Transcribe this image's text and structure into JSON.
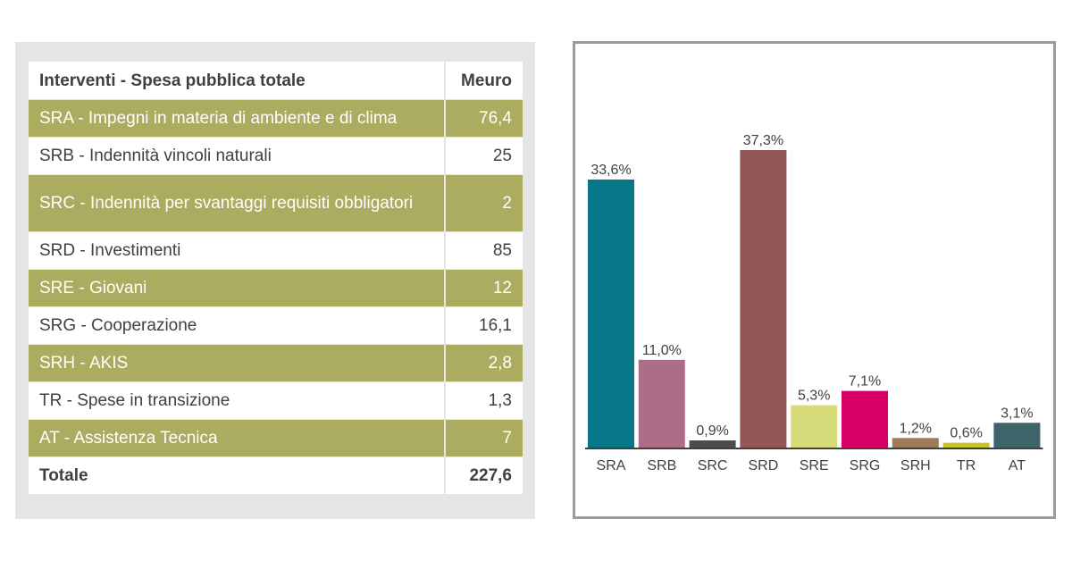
{
  "table": {
    "header": {
      "label": "Interventi - Spesa pubblica totale",
      "value": "Meuro"
    },
    "rows": [
      {
        "label": "SRA - Impegni in materia di ambiente e di clima",
        "value": "76,4"
      },
      {
        "label": "SRB - Indennità vincoli naturali",
        "value": "25"
      },
      {
        "label": "SRC - Indennità per svantaggi requisiti obbligatori",
        "value": "2"
      },
      {
        "label": "SRD - Investimenti",
        "value": "85"
      },
      {
        "label": "SRE - Giovani",
        "value": "12"
      },
      {
        "label": "SRG - Cooperazione",
        "value": "16,1"
      },
      {
        "label": "SRH - AKIS",
        "value": "2,8"
      },
      {
        "label": "TR - Spese in transizione",
        "value": "1,3"
      },
      {
        "label": "AT - Assistenza Tecnica",
        "value": "7"
      }
    ],
    "total": {
      "label": "Totale",
      "value": "227,6"
    },
    "colors": {
      "band": "#abac60",
      "panel": "#e5e5e5"
    }
  },
  "chart_data": {
    "type": "bar",
    "categories": [
      "SRA",
      "SRB",
      "SRC",
      "SRD",
      "SRE",
      "SRG",
      "SRH",
      "TR",
      "AT"
    ],
    "values": [
      33.6,
      11.0,
      0.9,
      37.3,
      5.3,
      7.1,
      1.2,
      0.6,
      3.1
    ],
    "data_labels": [
      "33,6%",
      "11,0%",
      "0,9%",
      "37,3%",
      "5,3%",
      "7,1%",
      "1,2%",
      "0,6%",
      "3,1%"
    ],
    "colors": [
      "#07788a",
      "#ad6d88",
      "#4d4d4d",
      "#935856",
      "#d8db7a",
      "#d70064",
      "#9c7a5a",
      "#c6c32c",
      "#3d6468"
    ],
    "title": "",
    "xlabel": "",
    "ylabel": "",
    "ylim": [
      0,
      37.3
    ],
    "grid": false,
    "legend": "none"
  }
}
